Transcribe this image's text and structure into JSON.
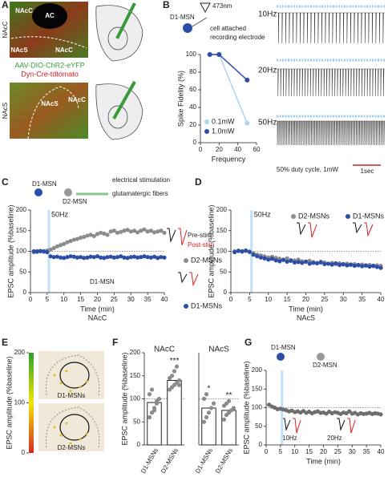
{
  "panel_labels": [
    "A",
    "B",
    "C",
    "D",
    "E",
    "F",
    "G"
  ],
  "panel_a": {
    "side_labels": [
      "NAcC",
      "NAcS"
    ],
    "top_regions": [
      "AC",
      "NAcC",
      "NAcS",
      "NAcC"
    ],
    "virus": "AAV-DIO-ChR2-eYFP",
    "cre": "Dyn-Cre-tdtomato",
    "bottom_regions": [
      "NAcS",
      "NAcC"
    ]
  },
  "panel_b": {
    "light": "473nm",
    "cell": "D1-MSN",
    "config": "cell attached",
    "electrode": "recording electrode",
    "traces": [
      "10Hz",
      "20Hz",
      "50Hz"
    ],
    "note": "50% duty cycle, 1mW",
    "scale": "1sec"
  },
  "panel_c": {
    "cell1": "D1-MSN",
    "cell2": "D2-MSN",
    "stim": "electrical stimulation",
    "fibers": "glutamatergic fibers",
    "pre": "Pre-stim",
    "post": "Post-stim",
    "cell3": "D1-MSN"
  },
  "panel_g": {
    "cell1": "D1-MSN",
    "cell2": "D2-MSN",
    "freqs": [
      "10Hz",
      "20Hz"
    ]
  },
  "chart_data": [
    {
      "type": "line",
      "xlabel": "Frequency",
      "ylabel": "Spike Fidelity (%)",
      "x": [
        10,
        20,
        50
      ],
      "series": [
        {
          "name": "0.1mW",
          "color": "#aad4ef",
          "values": [
            100,
            100,
            22
          ]
        },
        {
          "name": "1.0mW",
          "color": "#2c4ea6",
          "values": [
            100,
            100,
            71
          ]
        }
      ],
      "xlim": [
        0,
        60
      ],
      "xticks": [
        0,
        20,
        40,
        60
      ],
      "ylim": [
        0,
        100
      ],
      "yticks": [
        0,
        20,
        40,
        60,
        80,
        100
      ]
    },
    {
      "type": "scatter",
      "subtitle": "NAcC",
      "xlabel": "Time (min)",
      "ylabel": "EPSC amplitude (%baseline)",
      "stim_label": "50Hz",
      "stim_time": 5.5,
      "reference": 100,
      "x": [
        1,
        2,
        3,
        4,
        5,
        6,
        7,
        8,
        9,
        10,
        11,
        12,
        13,
        14,
        15,
        16,
        17,
        18,
        19,
        20,
        21,
        22,
        23,
        24,
        25,
        26,
        27,
        28,
        29,
        30,
        31,
        32,
        33,
        34,
        35,
        36,
        37,
        38,
        39,
        40
      ],
      "series": [
        {
          "name": "D2-MSNs",
          "color": "#8c8c8c",
          "values": [
            98,
            101,
            100,
            99,
            102,
            104,
            108,
            112,
            115,
            118,
            122,
            125,
            128,
            130,
            133,
            135,
            138,
            140,
            137,
            142,
            145,
            143,
            140,
            148,
            150,
            145,
            147,
            150,
            152,
            148,
            150,
            146,
            150,
            153,
            148,
            150,
            146,
            148,
            150,
            145
          ]
        },
        {
          "name": "D1-MSNs",
          "color": "#2c4ea6",
          "values": [
            100,
            99,
            101,
            100,
            98,
            88,
            86,
            87,
            85,
            84,
            86,
            88,
            87,
            85,
            86,
            84,
            85,
            87,
            86,
            88,
            85,
            84,
            86,
            87,
            85,
            86,
            88,
            85,
            84,
            86,
            87,
            85,
            86,
            88,
            86,
            85,
            87,
            84,
            86,
            85
          ]
        }
      ],
      "xlim": [
        0,
        40
      ],
      "xticks": [
        0,
        5,
        10,
        15,
        20,
        25,
        30,
        35,
        40
      ],
      "ylim": [
        0,
        200
      ],
      "yticks": [
        0,
        50,
        100,
        150,
        200
      ]
    },
    {
      "type": "scatter",
      "subtitle": "NAcS",
      "xlabel": "Time (min)",
      "ylabel": "EPSC amplitude (%baseline)",
      "stim_label": "50Hz",
      "stim_time": 5.5,
      "reference": 100,
      "x": [
        1,
        2,
        3,
        4,
        5,
        6,
        7,
        8,
        9,
        10,
        11,
        12,
        13,
        14,
        15,
        16,
        17,
        18,
        19,
        20,
        21,
        22,
        23,
        24,
        25,
        26,
        27,
        28,
        29,
        30,
        31,
        32,
        33,
        34,
        35,
        36,
        37,
        38,
        39,
        40
      ],
      "series": [
        {
          "name": "D2-MSNs",
          "color": "#8c8c8c",
          "values": [
            100,
            102,
            99,
            101,
            98,
            95,
            92,
            90,
            88,
            85,
            87,
            84,
            82,
            80,
            83,
            79,
            78,
            80,
            76,
            75,
            77,
            74,
            72,
            75,
            73,
            70,
            72,
            69,
            71,
            68,
            70,
            67,
            69,
            66,
            68,
            65,
            67,
            64,
            66,
            65
          ]
        },
        {
          "name": "D1-MSNs",
          "color": "#2c4ea6",
          "values": [
            98,
            101,
            100,
            102,
            99,
            92,
            88,
            85,
            83,
            80,
            82,
            78,
            76,
            79,
            75,
            77,
            73,
            74,
            72,
            75,
            70,
            72,
            71,
            73,
            69,
            70,
            68,
            71,
            67,
            69,
            66,
            68,
            65,
            67,
            64,
            66,
            63,
            65,
            62,
            60
          ]
        }
      ],
      "xlim": [
        0,
        40
      ],
      "xticks": [
        0,
        5,
        10,
        15,
        20,
        25,
        30,
        35,
        40
      ],
      "ylim": [
        0,
        200
      ],
      "yticks": [
        0,
        50,
        100,
        150,
        200
      ]
    },
    {
      "type": "colorbar",
      "ylabel": "EPSC amplitude (%baseline)",
      "labels": [
        "D1-MSNs",
        "D2-MSNs"
      ],
      "ylim": [
        0,
        200
      ],
      "yticks": [
        0,
        100,
        200
      ],
      "colors": [
        "#d62728",
        "#f2e600",
        "#2ca02c"
      ]
    },
    {
      "type": "bar",
      "title": "NAcC",
      "ylabel": "EPSC amplitude (%baseline)",
      "categories": [
        "D1-MSNs",
        "D2-MSNs"
      ],
      "values": [
        92,
        140
      ],
      "significance": [
        null,
        "***"
      ],
      "points": [
        [
          60,
          70,
          80,
          90,
          100,
          110,
          120,
          75,
          95
        ],
        [
          120,
          125,
          130,
          135,
          140,
          145,
          150,
          160,
          170,
          130
        ]
      ],
      "reference": 100,
      "ylim": [
        0,
        200
      ],
      "yticks": [
        0,
        50,
        100,
        150,
        200
      ]
    },
    {
      "type": "bar",
      "title": "NAcS",
      "categories": [
        "D1-MSNs",
        "D2-MSNs"
      ],
      "values": [
        80,
        75
      ],
      "significance": [
        "*",
        "**"
      ],
      "points": [
        [
          50,
          60,
          70,
          80,
          90,
          100,
          110
        ],
        [
          55,
          65,
          70,
          75,
          80,
          85,
          90,
          95
        ]
      ],
      "reference": 100,
      "ylim": [
        0,
        200
      ]
    },
    {
      "type": "scatter",
      "xlabel": "Time (min)",
      "ylabel": "EPSC amplitude (%baseline)",
      "stim_time": 5.5,
      "reference": 100,
      "color": "#6e6e6e",
      "x": [
        1,
        2,
        3,
        4,
        5,
        6,
        7,
        8,
        9,
        10,
        11,
        12,
        13,
        14,
        15,
        16,
        17,
        18,
        19,
        20,
        21,
        22,
        23,
        24,
        25,
        26,
        27,
        28,
        29,
        30,
        31,
        32,
        33,
        34,
        35,
        36,
        37,
        38,
        39,
        40
      ],
      "values": [
        108,
        103,
        100,
        96,
        97,
        95,
        93,
        90,
        92,
        88,
        90,
        87,
        91,
        86,
        89,
        85,
        88,
        90,
        86,
        87,
        84,
        89,
        85,
        88,
        86,
        83,
        87,
        85,
        90,
        84,
        86,
        82,
        85,
        83,
        84,
        86,
        83,
        85,
        84,
        82
      ],
      "xlim": [
        0,
        40
      ],
      "xticks": [
        0,
        5,
        10,
        15,
        20,
        25,
        30,
        35,
        40
      ],
      "ylim": [
        0,
        200
      ],
      "yticks": [
        0,
        50,
        100,
        150,
        200
      ]
    }
  ]
}
